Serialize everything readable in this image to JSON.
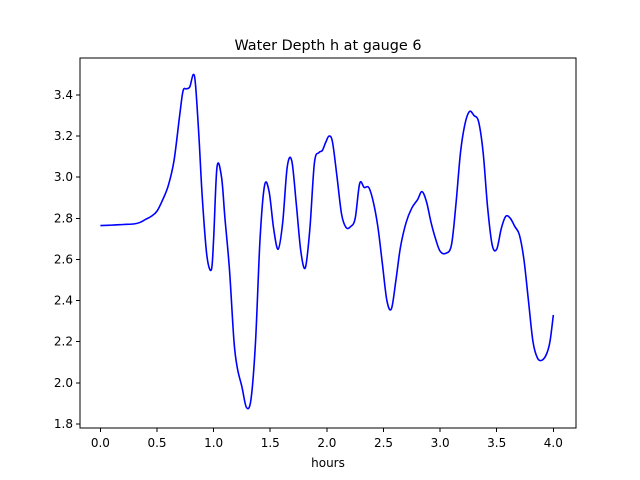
{
  "chart_data": {
    "type": "line",
    "title": "Water Depth h at gauge 6",
    "xlabel": "hours",
    "ylabel": "",
    "xlim": [
      -0.18,
      4.2
    ],
    "ylim": [
      1.78,
      3.58
    ],
    "grid": false,
    "colors": {
      "line": "#0000ff"
    },
    "xticks": [
      0.0,
      0.5,
      1.0,
      1.5,
      2.0,
      2.5,
      3.0,
      3.5,
      4.0
    ],
    "xtick_labels": [
      "0.0",
      "0.5",
      "1.0",
      "1.5",
      "2.0",
      "2.5",
      "3.0",
      "3.5",
      "4.0"
    ],
    "yticks": [
      1.8,
      2.0,
      2.2,
      2.4,
      2.6,
      2.8,
      3.0,
      3.2,
      3.4
    ],
    "ytick_labels": [
      "1.8",
      "2.0",
      "2.2",
      "2.4",
      "2.6",
      "2.8",
      "3.0",
      "3.2",
      "3.4"
    ],
    "series": [
      {
        "name": "",
        "x": [
          0.0,
          0.1,
          0.2,
          0.3,
          0.35,
          0.4,
          0.45,
          0.5,
          0.55,
          0.6,
          0.65,
          0.7,
          0.73,
          0.76,
          0.79,
          0.82,
          0.84,
          0.87,
          0.9,
          0.94,
          0.98,
          1.0,
          1.03,
          1.07,
          1.1,
          1.14,
          1.18,
          1.21,
          1.25,
          1.29,
          1.33,
          1.37,
          1.41,
          1.45,
          1.49,
          1.53,
          1.57,
          1.61,
          1.65,
          1.69,
          1.73,
          1.77,
          1.81,
          1.85,
          1.89,
          1.93,
          1.96,
          1.99,
          2.02,
          2.05,
          2.09,
          2.13,
          2.17,
          2.21,
          2.25,
          2.29,
          2.33,
          2.37,
          2.41,
          2.45,
          2.49,
          2.53,
          2.57,
          2.61,
          2.65,
          2.7,
          2.75,
          2.8,
          2.84,
          2.88,
          2.92,
          2.96,
          3.0,
          3.05,
          3.1,
          3.14,
          3.18,
          3.22,
          3.26,
          3.3,
          3.34,
          3.38,
          3.42,
          3.46,
          3.5,
          3.54,
          3.58,
          3.62,
          3.66,
          3.7,
          3.74,
          3.78,
          3.82,
          3.86,
          3.9,
          3.94,
          3.97,
          4.0
        ],
        "y": [
          2.765,
          2.767,
          2.77,
          2.773,
          2.78,
          2.795,
          2.81,
          2.835,
          2.89,
          2.96,
          3.08,
          3.3,
          3.42,
          3.43,
          3.44,
          3.5,
          3.45,
          3.2,
          2.9,
          2.62,
          2.55,
          2.7,
          3.05,
          3.0,
          2.8,
          2.55,
          2.2,
          2.07,
          1.98,
          1.88,
          1.92,
          2.2,
          2.7,
          2.96,
          2.93,
          2.75,
          2.65,
          2.78,
          3.05,
          3.08,
          2.87,
          2.64,
          2.56,
          2.75,
          3.07,
          3.12,
          3.13,
          3.17,
          3.2,
          3.17,
          3.0,
          2.82,
          2.755,
          2.76,
          2.8,
          2.97,
          2.95,
          2.95,
          2.88,
          2.76,
          2.58,
          2.4,
          2.36,
          2.5,
          2.66,
          2.78,
          2.85,
          2.89,
          2.93,
          2.88,
          2.78,
          2.7,
          2.64,
          2.63,
          2.67,
          2.87,
          3.12,
          3.26,
          3.32,
          3.3,
          3.27,
          3.12,
          2.85,
          2.67,
          2.65,
          2.75,
          2.81,
          2.8,
          2.76,
          2.72,
          2.6,
          2.4,
          2.2,
          2.12,
          2.11,
          2.14,
          2.2,
          2.33
        ]
      }
    ]
  }
}
